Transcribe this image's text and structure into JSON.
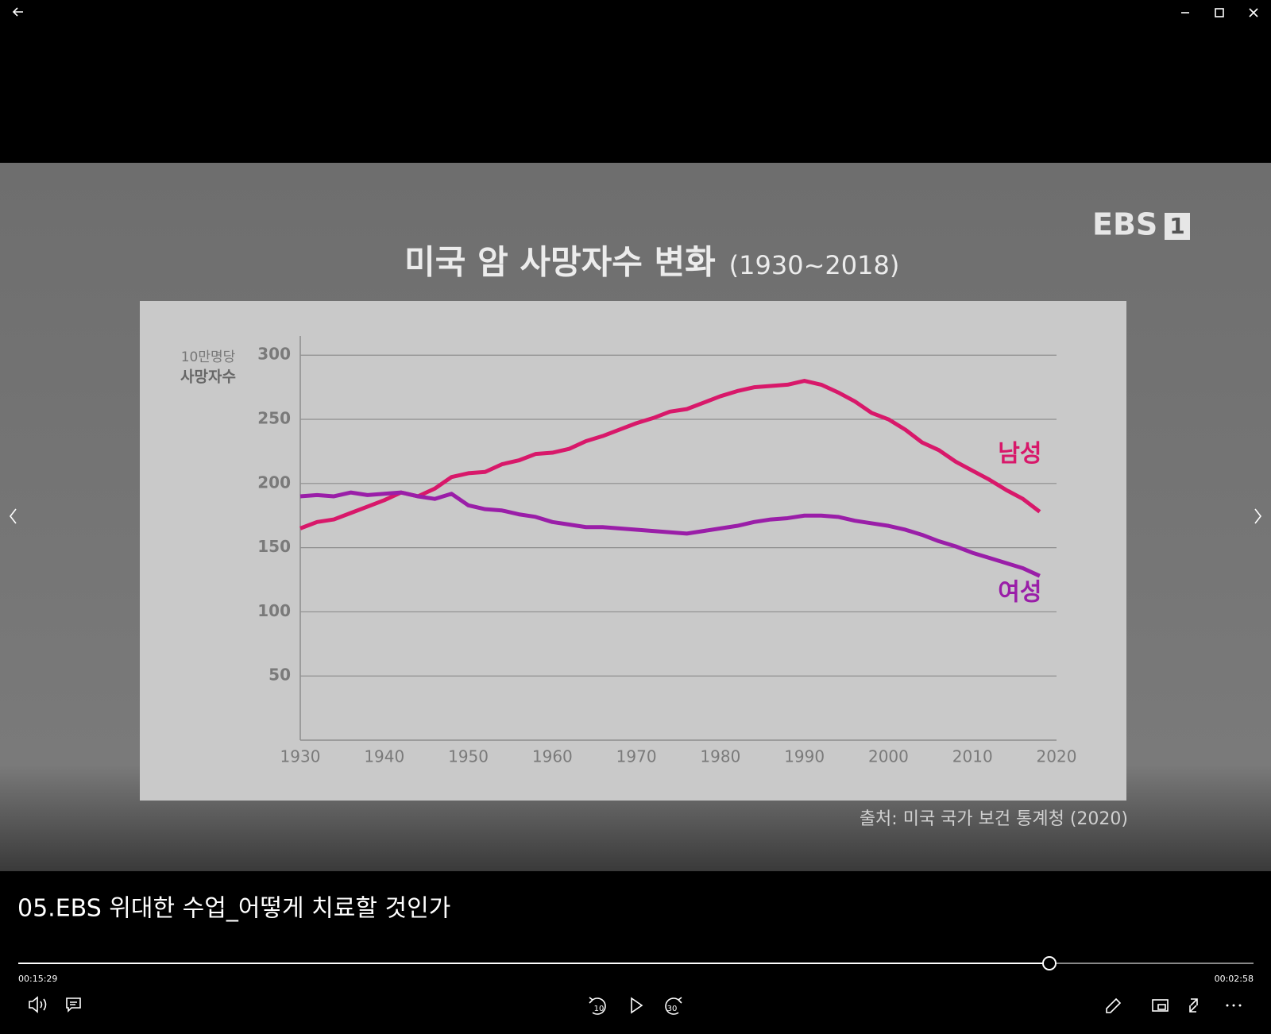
{
  "chart_data": {
    "type": "line",
    "title": "미국 암 사망자수 변화",
    "subtitle": "(1930~2018)",
    "y_label_unit": "10만명당",
    "y_label": "사망자수",
    "source": "출처: 미국 국가 보건 통계청 (2020)",
    "x": [
      1930,
      1932,
      1934,
      1936,
      1938,
      1940,
      1942,
      1944,
      1946,
      1948,
      1950,
      1952,
      1954,
      1956,
      1958,
      1960,
      1962,
      1964,
      1966,
      1968,
      1970,
      1972,
      1974,
      1976,
      1978,
      1980,
      1982,
      1984,
      1986,
      1988,
      1990,
      1992,
      1994,
      1996,
      1998,
      2000,
      2002,
      2004,
      2006,
      2008,
      2010,
      2012,
      2014,
      2016,
      2018
    ],
    "series": [
      {
        "name": "남성",
        "color": "#d8186a",
        "values": [
          165,
          170,
          172,
          177,
          182,
          187,
          193,
          190,
          196,
          205,
          208,
          209,
          215,
          218,
          223,
          224,
          227,
          233,
          237,
          242,
          247,
          251,
          256,
          258,
          263,
          268,
          272,
          275,
          276,
          277,
          280,
          277,
          271,
          264,
          255,
          250,
          242,
          232,
          226,
          217,
          210,
          203,
          195,
          188,
          178
        ]
      },
      {
        "name": "여성",
        "color": "#9a1ea8",
        "values": [
          190,
          191,
          190,
          193,
          191,
          192,
          193,
          190,
          188,
          192,
          183,
          180,
          179,
          176,
          174,
          170,
          168,
          166,
          166,
          165,
          164,
          163,
          162,
          161,
          163,
          165,
          167,
          170,
          172,
          173,
          175,
          175,
          174,
          171,
          169,
          167,
          164,
          160,
          155,
          151,
          146,
          142,
          138,
          134,
          128
        ]
      }
    ],
    "xlim": [
      1930,
      2020
    ],
    "xticks": [
      1930,
      1940,
      1950,
      1960,
      1970,
      1980,
      1990,
      2000,
      2010,
      2020
    ],
    "ylim": [
      0,
      315
    ],
    "yticks": [
      50,
      100,
      150,
      200,
      250,
      300
    ],
    "grid": true
  },
  "logo": {
    "text": "EBS",
    "channel": "1"
  },
  "player": {
    "video_title": "05.EBS 위대한 수업_어떻게 치료할 것인가",
    "elapsed": "00:15:29",
    "remaining": "00:02:58",
    "skip_back": "10",
    "skip_forward": "30"
  }
}
